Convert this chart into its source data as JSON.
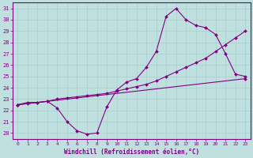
{
  "xlabel": "Windchill (Refroidissement éolien,°C)",
  "background_color": "#c0e0e0",
  "line_color": "#800080",
  "grid_color": "#a8d0d0",
  "xlim": [
    -0.5,
    23.5
  ],
  "ylim": [
    19.5,
    31.5
  ],
  "yticks": [
    20,
    21,
    22,
    23,
    24,
    25,
    26,
    27,
    28,
    29,
    30,
    31
  ],
  "xticks": [
    0,
    1,
    2,
    3,
    4,
    5,
    6,
    7,
    8,
    9,
    10,
    11,
    12,
    13,
    14,
    15,
    16,
    17,
    18,
    19,
    20,
    21,
    22,
    23
  ],
  "line1_x": [
    0,
    1,
    2,
    3,
    4,
    5,
    6,
    7,
    8,
    9,
    10,
    11,
    12,
    13,
    14,
    15,
    16,
    17,
    18,
    19,
    20,
    21,
    22,
    23
  ],
  "line1_y": [
    22.5,
    22.7,
    22.7,
    22.8,
    22.2,
    21.0,
    20.2,
    19.9,
    20.0,
    22.3,
    23.8,
    24.5,
    24.8,
    25.8,
    27.2,
    30.3,
    31.0,
    30.0,
    29.5,
    29.3,
    28.7,
    27.0,
    25.2,
    25.0
  ],
  "line2_x": [
    0,
    1,
    2,
    3,
    4,
    5,
    6,
    7,
    8,
    9,
    10,
    11,
    12,
    13,
    14,
    15,
    16,
    17,
    18,
    19,
    20,
    21,
    22,
    23
  ],
  "line2_y": [
    22.5,
    22.6,
    22.7,
    22.8,
    23.0,
    23.1,
    23.2,
    23.3,
    23.4,
    23.5,
    23.7,
    23.9,
    24.1,
    24.3,
    24.6,
    25.0,
    25.4,
    25.8,
    26.2,
    26.6,
    27.2,
    27.8,
    28.4,
    29.0
  ],
  "line3_x": [
    0,
    23
  ],
  "line3_y": [
    22.5,
    24.8
  ]
}
